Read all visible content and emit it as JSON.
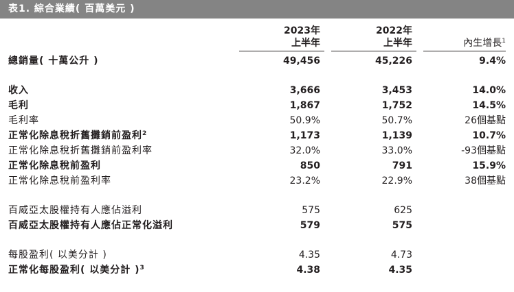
{
  "title": "表1. 綜合業績( 百萬美元 )",
  "headers": {
    "col1": [
      "2023年",
      "上半年"
    ],
    "col2": [
      "2022年",
      "上半年"
    ],
    "col3": "內生增長",
    "col3_sup": "1"
  },
  "rows": [
    {
      "label": "總銷量( 十萬公升 )",
      "v1": "49,456",
      "v2": "45,226",
      "v3": "9.4%",
      "bold": true
    },
    {
      "label": "收入",
      "v1": "3,666",
      "v2": "3,453",
      "v3": "14.0%",
      "bold": true
    },
    {
      "label": "毛利",
      "v1": "1,867",
      "v2": "1,752",
      "v3": "14.5%",
      "bold": true
    },
    {
      "label": "毛利率",
      "v1": "50.9%",
      "v2": "50.7%",
      "v3": "26個基點",
      "bold": false
    },
    {
      "label": "正常化除息稅折舊攤銷前盈利",
      "sup": "2",
      "v1": "1,173",
      "v2": "1,139",
      "v3": "10.7%",
      "bold": true
    },
    {
      "label": "正常化除息稅折舊攤銷前盈利率",
      "v1": "32.0%",
      "v2": "33.0%",
      "v3": "-93個基點",
      "bold": false
    },
    {
      "label": "正常化除息稅前盈利",
      "v1": "850",
      "v2": "791",
      "v3": "15.9%",
      "bold": true
    },
    {
      "label": "正常化除息稅前盈利率",
      "v1": "23.2%",
      "v2": "22.9%",
      "v3": "38個基點",
      "bold": false
    },
    {
      "label": "百威亞太股權持有人應佔溢利",
      "v1": "575",
      "v2": "625",
      "v3": "",
      "bold": false
    },
    {
      "label": "百威亞太股權持有人應佔正常化溢利",
      "v1": "579",
      "v2": "575",
      "v3": "",
      "bold": true
    },
    {
      "label": "每股盈利( 以美分計 )",
      "v1": "4.35",
      "v2": "4.73",
      "v3": "",
      "bold": false
    },
    {
      "label": "正常化每股盈利( 以美分計 )",
      "sup": "3",
      "v1": "4.38",
      "v2": "4.35",
      "v3": "",
      "bold": true
    }
  ]
}
